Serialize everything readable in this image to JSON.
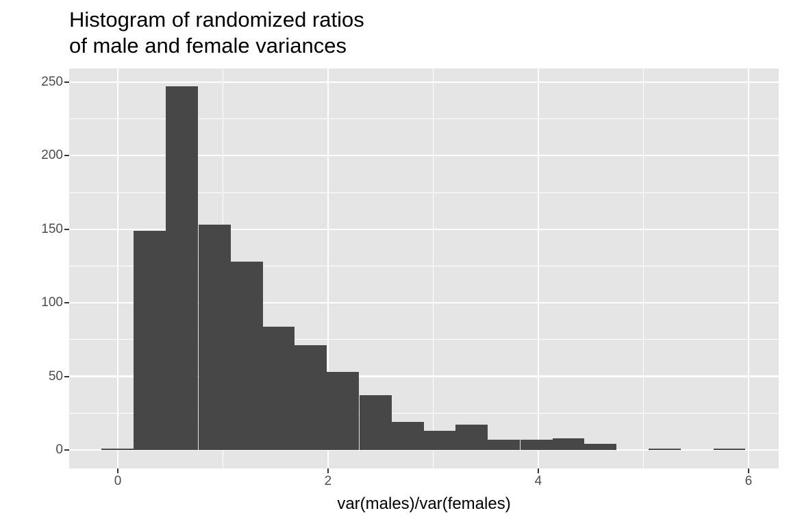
{
  "chart_data": {
    "type": "bar",
    "subtype": "histogram",
    "title": "Histogram of randomized ratios\nof male and female variances",
    "xlabel": "var(males)/var(females)",
    "ylabel": "",
    "bin_width": 0.3062,
    "bin_centers": [
      0.0,
      0.306,
      0.612,
      0.919,
      1.225,
      1.531,
      1.837,
      2.143,
      2.45,
      2.756,
      3.062,
      3.368,
      3.674,
      3.981,
      4.287,
      4.593,
      4.899,
      5.205,
      5.512,
      5.818
    ],
    "values": [
      1,
      149,
      247,
      153,
      128,
      84,
      71,
      53,
      37,
      19,
      13,
      17,
      7,
      7,
      8,
      4,
      0,
      1,
      0,
      1
    ],
    "xlim": [
      -0.4625,
      6.287
    ],
    "ylim": [
      -12.6,
      259.3
    ],
    "x_ticks": [
      0,
      2,
      4,
      6
    ],
    "x_tick_labels": [
      "0",
      "2",
      "4",
      "6"
    ],
    "x_minor": [
      1,
      3,
      5
    ],
    "y_ticks": [
      0,
      50,
      100,
      150,
      200,
      250
    ],
    "y_tick_labels": [
      "0",
      "50",
      "100",
      "150",
      "200",
      "250"
    ],
    "y_minor": [
      25,
      75,
      125,
      175,
      225
    ],
    "grid": true,
    "legend": null,
    "colors": {
      "bar": "#474747",
      "panel": "#e5e5e5",
      "grid": "#ffffff"
    }
  }
}
